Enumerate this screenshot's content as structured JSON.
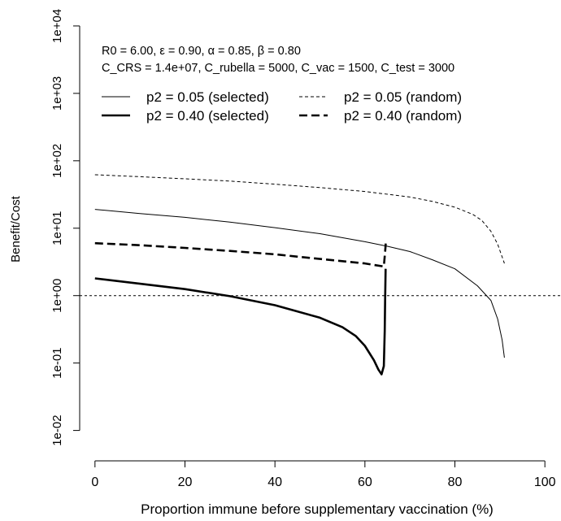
{
  "chart_data": {
    "type": "line",
    "xlabel": "Proportion immune before supplementary vaccination (%)",
    "ylabel": "Benefit/Cost",
    "y_scale": "log",
    "xlim": [
      -3.4,
      103.4
    ],
    "ylim": [
      0.006,
      16000
    ],
    "x_ticks": [
      0,
      20,
      40,
      60,
      80,
      100
    ],
    "x_tick_labels": [
      "0",
      "20",
      "40",
      "60",
      "80",
      "100"
    ],
    "y_ticks": [
      0.01,
      0.1,
      1,
      10,
      100,
      1000,
      10000
    ],
    "y_tick_labels": [
      "1e-02",
      "1e-01",
      "1e+00",
      "1e+01",
      "1e+02",
      "1e+03",
      "1e+04"
    ],
    "reference_line": {
      "y": 1,
      "style": "dashed"
    },
    "annotations": [
      "R0 = 6.00, ε = 0.90, α = 0.85, β = 0.80",
      "C_CRS = 1.4e+07, C_rubella = 5000, C_vac = 1500, C_test = 3000"
    ],
    "legend": {
      "position": "top-left",
      "entries": [
        {
          "label": "p2 = 0.05 (selected)",
          "series": 0
        },
        {
          "label": "p2 = 0.05 (random)",
          "series": 1
        },
        {
          "label": "p2 = 0.40 (selected)",
          "series": 2
        },
        {
          "label": "p2 = 0.40 (random)",
          "series": 3
        }
      ]
    },
    "series": [
      {
        "name": "p2 = 0.05 (selected)",
        "style": "solid-thin",
        "points": [
          [
            0,
            19
          ],
          [
            10,
            16.5
          ],
          [
            20,
            14.5
          ],
          [
            30,
            12.3
          ],
          [
            40,
            10.2
          ],
          [
            50,
            8.3
          ],
          [
            60,
            6.3
          ],
          [
            65,
            5.4
          ],
          [
            70,
            4.5
          ],
          [
            75,
            3.4
          ],
          [
            80,
            2.5
          ],
          [
            85,
            1.4
          ],
          [
            88,
            0.85
          ],
          [
            89.5,
            0.45
          ],
          [
            90.5,
            0.22
          ],
          [
            91,
            0.12
          ]
        ]
      },
      {
        "name": "p2 = 0.05 (random)",
        "style": "dashed-thin",
        "points": [
          [
            0,
            62
          ],
          [
            10,
            58
          ],
          [
            20,
            54
          ],
          [
            30,
            50
          ],
          [
            40,
            45
          ],
          [
            50,
            40
          ],
          [
            60,
            35
          ],
          [
            70,
            29
          ],
          [
            75,
            25
          ],
          [
            80,
            20.5
          ],
          [
            84,
            16
          ],
          [
            86,
            13
          ],
          [
            88,
            9
          ],
          [
            89.5,
            5.8
          ],
          [
            91,
            3
          ]
        ]
      },
      {
        "name": "p2 = 0.40 (selected)",
        "style": "solid-thick",
        "points": [
          [
            0,
            1.8
          ],
          [
            10,
            1.5
          ],
          [
            20,
            1.25
          ],
          [
            30,
            0.98
          ],
          [
            40,
            0.72
          ],
          [
            50,
            0.47
          ],
          [
            55,
            0.34
          ],
          [
            58,
            0.25
          ],
          [
            60,
            0.18
          ],
          [
            62,
            0.11
          ],
          [
            63,
            0.08
          ],
          [
            63.7,
            0.068
          ],
          [
            64.2,
            0.09
          ],
          [
            64.4,
            0.3
          ],
          [
            64.5,
            0.9
          ],
          [
            64.6,
            2.5
          ]
        ]
      },
      {
        "name": "p2 = 0.40 (random)",
        "style": "dashed-thick",
        "points": [
          [
            0,
            6
          ],
          [
            10,
            5.6
          ],
          [
            20,
            5.1
          ],
          [
            30,
            4.6
          ],
          [
            40,
            4.1
          ],
          [
            50,
            3.5
          ],
          [
            60,
            3.0
          ],
          [
            64.2,
            2.7
          ],
          [
            64.5,
            4.5
          ],
          [
            64.7,
            6.8
          ]
        ]
      }
    ]
  }
}
